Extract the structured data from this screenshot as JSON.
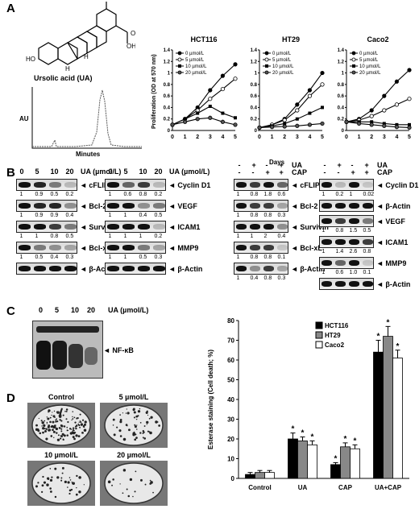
{
  "panels": {
    "A": "A",
    "B": "B",
    "C": "C",
    "D": "D"
  },
  "structure": {
    "name": "Ursolic acid (UA)",
    "oh": "OH",
    "o": "O",
    "h": "H",
    "h2": "H",
    "ho": "HO"
  },
  "hplc": {
    "ylabel": "AU",
    "xlabel": "Minutes"
  },
  "prolif": {
    "ylabel": "Proliferation (OD at 570 nm)",
    "xlabel": "Days",
    "legend": [
      "0 µmol/L",
      "5 µmol/L",
      "10 µmol/L",
      "20 µmol/L"
    ],
    "yticks": [
      "0",
      "0.2",
      "0.4",
      "0.6",
      "0.8",
      "1",
      "1.2",
      "1.4"
    ],
    "xticks": [
      "0",
      "1",
      "2",
      "3",
      "4",
      "5"
    ]
  },
  "chart_data": [
    {
      "type": "line",
      "title": "HCT116",
      "x": [
        0,
        1,
        2,
        3,
        4,
        5
      ],
      "ylim": [
        0,
        1.4
      ],
      "series": [
        {
          "name": "0 µmol/L",
          "values": [
            0.1,
            0.2,
            0.4,
            0.7,
            0.95,
            1.15
          ]
        },
        {
          "name": "5 µmol/L",
          "values": [
            0.1,
            0.2,
            0.35,
            0.55,
            0.72,
            0.9
          ]
        },
        {
          "name": "10 µmol/L",
          "values": [
            0.1,
            0.2,
            0.3,
            0.42,
            0.3,
            0.22
          ]
        },
        {
          "name": "20 µmol/L",
          "values": [
            0.1,
            0.15,
            0.2,
            0.22,
            0.15,
            0.1
          ]
        }
      ]
    },
    {
      "type": "line",
      "title": "HT29",
      "x": [
        0,
        1,
        2,
        3,
        4,
        5
      ],
      "ylim": [
        0,
        1.4
      ],
      "series": [
        {
          "name": "0 µmol/L",
          "values": [
            0.05,
            0.1,
            0.2,
            0.45,
            0.7,
            1.0
          ]
        },
        {
          "name": "5 µmol/L",
          "values": [
            0.05,
            0.1,
            0.18,
            0.35,
            0.6,
            0.8
          ]
        },
        {
          "name": "10 µmol/L",
          "values": [
            0.05,
            0.08,
            0.12,
            0.2,
            0.3,
            0.4
          ]
        },
        {
          "name": "20 µmol/L",
          "values": [
            0.05,
            0.06,
            0.07,
            0.08,
            0.1,
            0.12
          ]
        }
      ]
    },
    {
      "type": "line",
      "title": "Caco2",
      "x": [
        0,
        1,
        2,
        3,
        4,
        5
      ],
      "ylim": [
        0,
        1.4
      ],
      "series": [
        {
          "name": "0 µmol/L",
          "values": [
            0.15,
            0.2,
            0.35,
            0.6,
            0.85,
            1.05
          ]
        },
        {
          "name": "5 µmol/L",
          "values": [
            0.15,
            0.18,
            0.25,
            0.35,
            0.45,
            0.55
          ]
        },
        {
          "name": "10 µmol/L",
          "values": [
            0.15,
            0.15,
            0.15,
            0.12,
            0.1,
            0.1
          ]
        },
        {
          "name": "20 µmol/L",
          "values": [
            0.15,
            0.12,
            0.1,
            0.08,
            0.06,
            0.05
          ]
        }
      ]
    },
    {
      "type": "bar",
      "categories": [
        "Control",
        "UA",
        "CAP",
        "UA+CAP"
      ],
      "ylabel": "Esterase staining (Cell death; %)",
      "ylim": [
        0,
        80
      ],
      "yticks": [
        "0",
        "10",
        "20",
        "30",
        "40",
        "50",
        "60",
        "70",
        "80"
      ],
      "series": [
        {
          "name": "HCT116",
          "values": [
            2,
            20,
            7,
            64
          ],
          "err": [
            1,
            3,
            1,
            6
          ]
        },
        {
          "name": "HT29",
          "values": [
            3,
            19,
            16,
            72
          ],
          "err": [
            1,
            2,
            2,
            5
          ]
        },
        {
          "name": "Caco2",
          "values": [
            3,
            17,
            15,
            61
          ],
          "err": [
            1,
            2,
            2,
            4
          ]
        }
      ],
      "stars": [
        "*",
        "*",
        "*",
        "*",
        "*",
        "*",
        "*",
        "*",
        "*"
      ]
    }
  ],
  "blotB": {
    "b1": {
      "conc": [
        "0",
        "5",
        "10",
        "20"
      ],
      "unit": "UA (µmol/L)",
      "rows": [
        {
          "label": "cFLIP",
          "nums": [
            "1",
            "0.9",
            "0.5",
            "0.2"
          ]
        },
        {
          "label": "Bcl-2",
          "nums": [
            "1",
            "0.9",
            "0.9",
            "0.4"
          ]
        },
        {
          "label": "Survivin",
          "nums": [
            "1",
            "1",
            "0.8",
            "0.5"
          ]
        },
        {
          "label": "Bcl-xL",
          "nums": [
            "1",
            "0.5",
            "0.4",
            "0.3"
          ]
        },
        {
          "label": "β-Actin",
          "nums": []
        }
      ]
    },
    "b2": {
      "conc": [
        "0",
        "5",
        "10",
        "20"
      ],
      "unit": "UA (µmol/L)",
      "rows": [
        {
          "label": "Cyclin D1",
          "nums": [
            "1",
            "0.6",
            "0.8",
            "0.2"
          ]
        },
        {
          "label": "VEGF",
          "nums": [
            "1",
            "1",
            "0.4",
            "0.5"
          ]
        },
        {
          "label": "ICAM1",
          "nums": [
            "1",
            "1",
            "1",
            "0.2"
          ]
        },
        {
          "label": "MMP9",
          "nums": [
            "1",
            "1",
            "0.5",
            "0.3"
          ]
        },
        {
          "label": "β-Actin",
          "nums": []
        }
      ]
    },
    "b3": {
      "ua": [
        "-",
        "+",
        "-",
        "+"
      ],
      "cap": [
        "-",
        "-",
        "+",
        "+"
      ],
      "ualabel": "UA",
      "caplabel": "CAP",
      "rows": [
        {
          "label": "cFLIP",
          "nums": [
            "1",
            "0.8",
            "1.8",
            "0.6"
          ]
        },
        {
          "label": "Bcl-2",
          "nums": [
            "1",
            "0.8",
            "0.8",
            "0.3"
          ]
        },
        {
          "label": "Survivin",
          "nums": [
            "1",
            "1",
            "2",
            "0.4"
          ]
        },
        {
          "label": "Bcl-xL",
          "nums": [
            "1",
            "0.8",
            "0.8",
            "0.1"
          ]
        },
        {
          "label": "β-Actin",
          "nums": [
            "1",
            "0.4",
            "0.8",
            "0.3"
          ]
        }
      ]
    },
    "b4": {
      "ua": [
        "-",
        "+",
        "-",
        "+"
      ],
      "cap": [
        "-",
        "-",
        "+",
        "+"
      ],
      "ualabel": "UA",
      "caplabel": "CAP",
      "rows": [
        {
          "label": "Cyclin D1",
          "nums": [
            "1",
            "0.2",
            "1",
            "0.02"
          ]
        },
        {
          "label": "β-Actin",
          "nums": []
        },
        {
          "label": "VEGF",
          "nums": [
            "1",
            "0.8",
            "1.5",
            "0.5"
          ]
        },
        {
          "label": "ICAM1",
          "nums": [
            "1",
            "1.4",
            "2.6",
            "0.8"
          ]
        },
        {
          "label": "MMP9",
          "nums": [
            "1",
            "0.6",
            "1.0",
            "0.1"
          ]
        },
        {
          "label": "β-Actin",
          "nums": []
        }
      ]
    }
  },
  "gelC": {
    "conc": [
      "0",
      "5",
      "10",
      "20"
    ],
    "unit": "UA (µmol/L)",
    "band": "NF-κB"
  },
  "platesD": {
    "labels": [
      "Control",
      "5 µmol/L",
      "10 µmol/L",
      "20 µmol/L"
    ]
  },
  "colors": {
    "line": "#000",
    "bar1": "#000",
    "bar2": "#888",
    "bar3": "#fff"
  }
}
